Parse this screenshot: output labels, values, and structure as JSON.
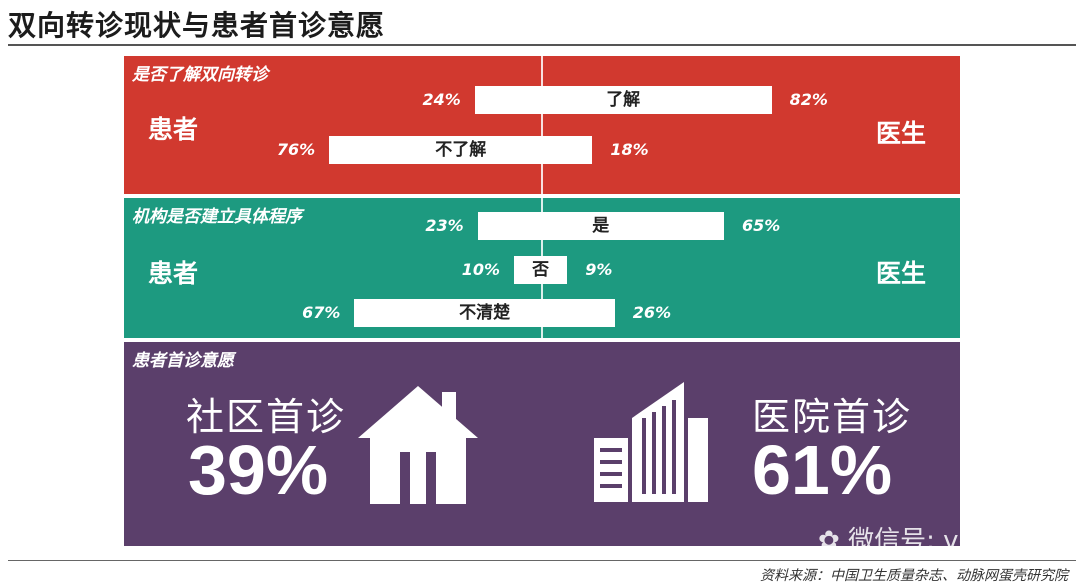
{
  "title": "双向转诊现状与患者首诊意愿",
  "source": "资料来源：中国卫生质量杂志、动脉网蛋壳研究院",
  "watermark": "微信号: vcbeat",
  "colors": {
    "red": "#d1392f",
    "green": "#1d9a80",
    "purple": "#5b3f6b",
    "bar": "#ffffff"
  },
  "chart_data": [
    {
      "type": "bar",
      "title": "是否了解双向转诊",
      "left_label": "患者",
      "right_label": "医生",
      "categories": [
        "了解",
        "不了解"
      ],
      "series": [
        {
          "name": "患者",
          "values": [
            24,
            76
          ]
        },
        {
          "name": "医生",
          "values": [
            82,
            18
          ]
        }
      ]
    },
    {
      "type": "bar",
      "title": "机构是否建立具体程序",
      "left_label": "患者",
      "right_label": "医生",
      "categories": [
        "是",
        "否",
        "不清楚"
      ],
      "series": [
        {
          "name": "患者",
          "values": [
            23,
            10,
            67
          ]
        },
        {
          "name": "医生",
          "values": [
            65,
            9,
            26
          ]
        }
      ]
    },
    {
      "type": "pie",
      "title": "患者首诊意愿",
      "categories": [
        "社区首诊",
        "医院首诊"
      ],
      "values": [
        39,
        61
      ]
    }
  ],
  "labels": {
    "community_pct": "39%",
    "hospital_pct": "61%"
  },
  "icons": [
    "house-icon",
    "building-icon",
    "wechat-icon"
  ]
}
